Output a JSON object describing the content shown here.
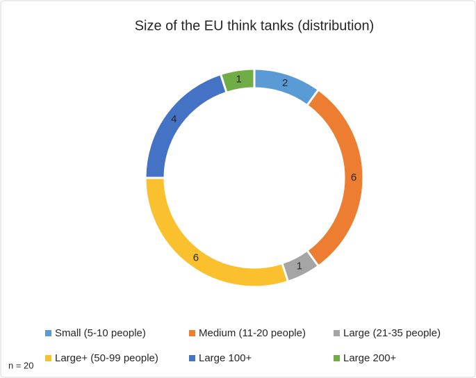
{
  "chart_data": {
    "type": "donut",
    "title": "Size of the EU think tanks (distribution)",
    "categories": [
      "Small (5-10 people)",
      "Medium (11-20 people)",
      "Large (21-35 people)",
      "Large+ (50-99 people)",
      "Large 100+",
      "Large 200+"
    ],
    "values": [
      2,
      6,
      1,
      6,
      4,
      1
    ],
    "colors": [
      "#5b9bd5",
      "#ed7d31",
      "#a5a5a5",
      "#fbc02d",
      "#4472c4",
      "#70ad47"
    ],
    "legend": "bottom",
    "note": "n = 20"
  }
}
